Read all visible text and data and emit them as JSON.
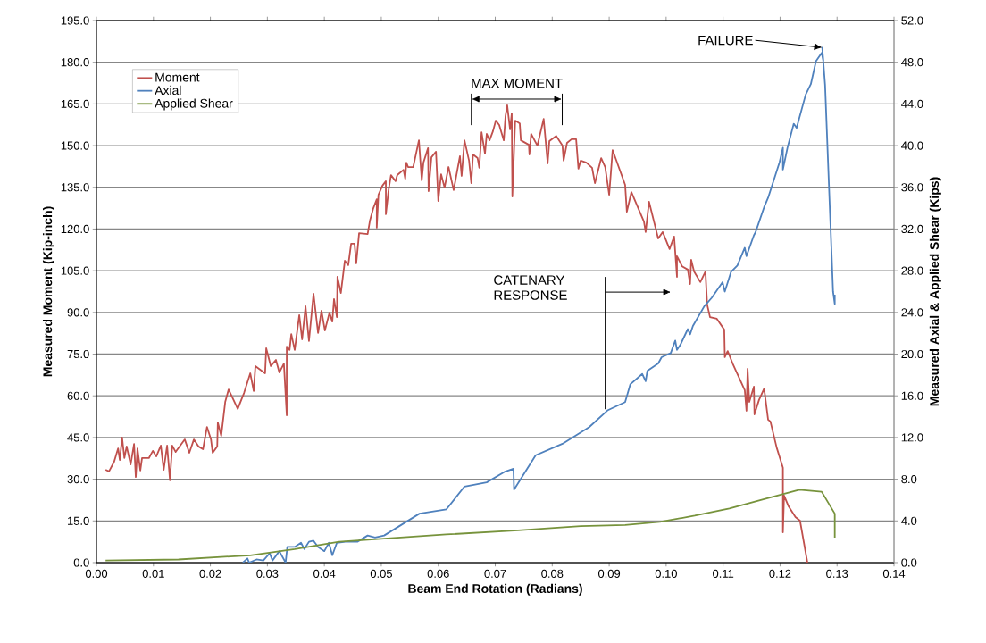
{
  "chart_data": {
    "type": "line",
    "xlabel": "Beam End Rotation (Radians)",
    "ylabel": "Measured Moment (Kip-inch)",
    "y2label": "Measured Axial & Applied Shear (Kips)",
    "xlim": [
      0,
      0.14
    ],
    "xticks": [
      {
        "value": 0,
        "label": "0.00"
      },
      {
        "value": 0.01,
        "label": "0.01"
      },
      {
        "value": 0.02,
        "label": "0.02"
      },
      {
        "value": 0.03,
        "label": "0.03"
      },
      {
        "value": 0.04,
        "label": "0.04"
      },
      {
        "value": 0.05,
        "label": "0.05"
      },
      {
        "value": 0.06,
        "label": "0.06"
      },
      {
        "value": 0.07,
        "label": "0.07"
      },
      {
        "value": 0.08,
        "label": "0.08"
      },
      {
        "value": 0.09,
        "label": "0.09"
      },
      {
        "value": 0.1,
        "label": "0.10"
      },
      {
        "value": 0.11,
        "label": "0.11"
      },
      {
        "value": 0.12,
        "label": "0.12"
      },
      {
        "value": 0.13,
        "label": "0.13"
      },
      {
        "value": 0.14,
        "label": "0.14"
      }
    ],
    "ylim": [
      0,
      195
    ],
    "yticks": [
      {
        "value": 0,
        "label": "0.0"
      },
      {
        "value": 15,
        "label": "15.0"
      },
      {
        "value": 30,
        "label": "30.0"
      },
      {
        "value": 45,
        "label": "45.0"
      },
      {
        "value": 60,
        "label": "60.0"
      },
      {
        "value": 75,
        "label": "75.0"
      },
      {
        "value": 90,
        "label": "90.0"
      },
      {
        "value": 105,
        "label": "105.0"
      },
      {
        "value": 120,
        "label": "120.0"
      },
      {
        "value": 135,
        "label": "135.0"
      },
      {
        "value": 150,
        "label": "150.0"
      },
      {
        "value": 165,
        "label": "165.0"
      },
      {
        "value": 180,
        "label": "180.0"
      },
      {
        "value": 195,
        "label": "195.0"
      }
    ],
    "y2lim": [
      0,
      52
    ],
    "y2ticks": [
      {
        "value": 0,
        "label": "0.0"
      },
      {
        "value": 4,
        "label": "4.0"
      },
      {
        "value": 8,
        "label": "8.0"
      },
      {
        "value": 12,
        "label": "12.0"
      },
      {
        "value": 16,
        "label": "16.0"
      },
      {
        "value": 20,
        "label": "20.0"
      },
      {
        "value": 24,
        "label": "24.0"
      },
      {
        "value": 28,
        "label": "28.0"
      },
      {
        "value": 32,
        "label": "32.0"
      },
      {
        "value": 36,
        "label": "36.0"
      },
      {
        "value": 40,
        "label": "40.0"
      },
      {
        "value": 44,
        "label": "44.0"
      },
      {
        "value": 48,
        "label": "48.0"
      },
      {
        "value": 52,
        "label": "52.0"
      }
    ],
    "grid": "y",
    "legend": "top left",
    "marker": "none",
    "line_style": "solid",
    "annotations": [
      {
        "text": "FAILURE",
        "x": 0.1274,
        "y": 185.3
      },
      "MAX MOMENT"
    ],
    "ref_lines": [
      {
        "axis": "x",
        "value": 0.0893,
        "label": "CATENARY RESPONSE"
      }
    ],
    "series": [
      {
        "name": "Moment",
        "color": "#c0504d",
        "x": [
          0.0016,
          0.0022,
          0.0031,
          0.0038,
          0.0041,
          0.0045,
          0.0049,
          0.0053,
          0.006,
          0.0066,
          0.0069,
          0.0072,
          0.0077,
          0.008,
          0.0092,
          0.0099,
          0.0105,
          0.0113,
          0.0118,
          0.0124,
          0.0129,
          0.0133,
          0.0139,
          0.0155,
          0.0163,
          0.0171,
          0.0179,
          0.0187,
          0.0194,
          0.0201,
          0.0204,
          0.0212,
          0.0213,
          0.0219,
          0.0226,
          0.0232,
          0.0248,
          0.0259,
          0.027,
          0.0276,
          0.0279,
          0.0296,
          0.0298,
          0.0306,
          0.0315,
          0.0321,
          0.0329,
          0.0334,
          0.0334,
          0.0339,
          0.0342,
          0.0348,
          0.0356,
          0.0361,
          0.0367,
          0.0373,
          0.0381,
          0.0389,
          0.0395,
          0.0401,
          0.0409,
          0.0414,
          0.0417,
          0.0422,
          0.0423,
          0.0429,
          0.0436,
          0.0442,
          0.0447,
          0.0453,
          0.0456,
          0.0461,
          0.0476,
          0.048,
          0.0486,
          0.0492,
          0.0492,
          0.0495,
          0.0502,
          0.0508,
          0.0508,
          0.0513,
          0.0517,
          0.0525,
          0.0528,
          0.0539,
          0.0542,
          0.0544,
          0.0547,
          0.0556,
          0.0566,
          0.0571,
          0.0574,
          0.0582,
          0.0583,
          0.0588,
          0.0596,
          0.06,
          0.0605,
          0.0611,
          0.0618,
          0.0627,
          0.0638,
          0.0641,
          0.0646,
          0.0654,
          0.0658,
          0.0661,
          0.0669,
          0.0672,
          0.0676,
          0.0682,
          0.0685,
          0.069,
          0.0696,
          0.0701,
          0.0707,
          0.0715,
          0.0718,
          0.0721,
          0.0726,
          0.0729,
          0.073,
          0.0735,
          0.0743,
          0.0745,
          0.0759,
          0.076,
          0.0763,
          0.0774,
          0.0785,
          0.0792,
          0.0795,
          0.0807,
          0.0818,
          0.082,
          0.0826,
          0.0834,
          0.0842,
          0.0846,
          0.085,
          0.086,
          0.087,
          0.0875,
          0.0886,
          0.0893,
          0.09,
          0.0906,
          0.0928,
          0.0931,
          0.0939,
          0.0961,
          0.0964,
          0.097,
          0.0986,
          0.0994,
          0.1006,
          0.1014,
          0.1019,
          0.1019,
          0.1028,
          0.1038,
          0.1042,
          0.1044,
          0.1049,
          0.106,
          0.1069,
          0.1072,
          0.1077,
          0.1089,
          0.1102,
          0.1103,
          0.1108,
          0.1118,
          0.1138,
          0.1141,
          0.1143,
          0.1146,
          0.1154,
          0.1155,
          0.1163,
          0.1172,
          0.1179,
          0.1183,
          0.1194,
          0.1205,
          0.1205,
          0.1207,
          0.1215,
          0.1227,
          0.1235,
          0.1248
        ],
        "values": [
          33.4,
          32.8,
          36.3,
          41.1,
          36.9,
          45.0,
          37.6,
          41.8,
          35.3,
          42.7,
          30.8,
          41.1,
          33.1,
          37.6,
          37.6,
          40.2,
          38.2,
          42.1,
          33.4,
          42.1,
          29.6,
          42.1,
          39.8,
          44.3,
          39.5,
          44.3,
          41.8,
          40.8,
          48.8,
          44.3,
          39.5,
          41.8,
          50.4,
          45.6,
          57.8,
          62.3,
          55.3,
          61.0,
          68.1,
          61.7,
          70.7,
          68.1,
          77.1,
          70.7,
          72.9,
          68.4,
          71.6,
          53.0,
          77.7,
          76.5,
          82.2,
          76.5,
          89.0,
          80.3,
          92.2,
          79.7,
          96.7,
          82.6,
          90.6,
          83.5,
          89.9,
          86.7,
          94.8,
          88.3,
          102.8,
          97.0,
          108.6,
          107.0,
          114.7,
          114.7,
          107.6,
          118.5,
          118.2,
          123.0,
          127.5,
          130.7,
          120.5,
          132.3,
          135.6,
          137.2,
          125.3,
          134.3,
          139.4,
          137.2,
          139.4,
          141.3,
          138.1,
          143.9,
          142.3,
          142.3,
          151.9,
          137.5,
          143.9,
          149.1,
          133.6,
          145.8,
          147.8,
          130.1,
          139.7,
          134.9,
          142.3,
          134.0,
          146.2,
          139.1,
          151.9,
          144.6,
          136.5,
          146.8,
          145.5,
          142.0,
          154.8,
          147.1,
          154.2,
          151.9,
          155.2,
          159.0,
          157.4,
          151.9,
          160.6,
          164.5,
          155.8,
          161.6,
          131.7,
          159.0,
          158.0,
          151.9,
          150.3,
          146.8,
          154.2,
          150.0,
          159.6,
          143.6,
          151.6,
          153.5,
          150.0,
          144.6,
          151.0,
          152.3,
          152.3,
          141.7,
          144.6,
          143.9,
          142.0,
          136.5,
          145.5,
          142.3,
          132.3,
          148.4,
          135.9,
          126.2,
          133.3,
          122.7,
          118.9,
          129.8,
          116.6,
          118.9,
          112.8,
          117.3,
          102.8,
          110.2,
          106.6,
          105.4,
          100.2,
          108.9,
          104.7,
          100.9,
          104.7,
          92.8,
          88.3,
          87.7,
          83.8,
          73.9,
          76.1,
          71.0,
          62.0,
          54.6,
          69.7,
          57.8,
          63.3,
          53.3,
          58.5,
          62.6,
          51.4,
          50.8,
          41.4,
          34.1,
          10.9,
          24.1,
          20.2,
          16.4,
          15.1,
          0
        ]
      },
      {
        "name": "Axial",
        "color": "#4f81bd",
        "axis": "y2",
        "x": [
          0.0257,
          0.0265,
          0.0268,
          0.0281,
          0.0293,
          0.0304,
          0.0309,
          0.0321,
          0.0332,
          0.0335,
          0.0348,
          0.0359,
          0.0365,
          0.0373,
          0.0381,
          0.0389,
          0.04,
          0.0408,
          0.0414,
          0.0422,
          0.0437,
          0.0458,
          0.0476,
          0.0489,
          0.0505,
          0.0567,
          0.0614,
          0.0646,
          0.0685,
          0.0716,
          0.0732,
          0.0733,
          0.0771,
          0.0818,
          0.0865,
          0.0897,
          0.0928,
          0.0937,
          0.0958,
          0.0964,
          0.0967,
          0.0986,
          0.0992,
          0.1008,
          0.1016,
          0.1019,
          0.1025,
          0.1038,
          0.1042,
          0.1047,
          0.1067,
          0.108,
          0.1099,
          0.1103,
          0.1114,
          0.1125,
          0.1138,
          0.1141,
          0.1154,
          0.1157,
          0.1172,
          0.1179,
          0.1199,
          0.1205,
          0.1205,
          0.1213,
          0.1224,
          0.1229,
          0.1245,
          0.1254,
          0.1263,
          0.1273,
          0.1276,
          0.1274,
          0.1279,
          0.1293,
          0.1296,
          0.1296
        ],
        "values": [
          0,
          0.4,
          0,
          0.3,
          0.2,
          0.9,
          0.2,
          1.1,
          0,
          1.5,
          1.5,
          1.9,
          1.3,
          2.0,
          2.1,
          1.5,
          1.1,
          1.9,
          0.7,
          1.9,
          2.0,
          2.0,
          2.6,
          2.4,
          2.6,
          4.7,
          5.1,
          7.3,
          7.7,
          8.7,
          9.0,
          7.0,
          10.3,
          11.4,
          13.0,
          14.6,
          15.4,
          17.1,
          18.1,
          17.4,
          18.4,
          19.1,
          19.7,
          20.1,
          21.3,
          20.4,
          20.9,
          22.4,
          21.9,
          22.7,
          24.6,
          25.4,
          26.9,
          26.0,
          27.9,
          28.5,
          30.2,
          29.4,
          31.4,
          31.7,
          34.1,
          35.0,
          38.4,
          39.8,
          37.7,
          39.8,
          42.1,
          41.7,
          44.9,
          45.9,
          48.1,
          48.9,
          48.1,
          49.4,
          45.8,
          26.0,
          24.8,
          25.7
        ]
      },
      {
        "name": "Applied Shear",
        "color": "#77933c",
        "axis": "y2",
        "x": [
          0.0016,
          0.0144,
          0.027,
          0.0348,
          0.0426,
          0.0505,
          0.0614,
          0.074,
          0.085,
          0.0928,
          0.0989,
          0.105,
          0.1111,
          0.1172,
          0.1234,
          0.1273,
          0.1296,
          0.1296
        ],
        "values": [
          0.2,
          0.3,
          0.7,
          1.3,
          2.0,
          2.3,
          2.7,
          3.1,
          3.5,
          3.6,
          3.9,
          4.5,
          5.2,
          6.1,
          7.0,
          6.8,
          4.7,
          2.4
        ]
      }
    ]
  }
}
